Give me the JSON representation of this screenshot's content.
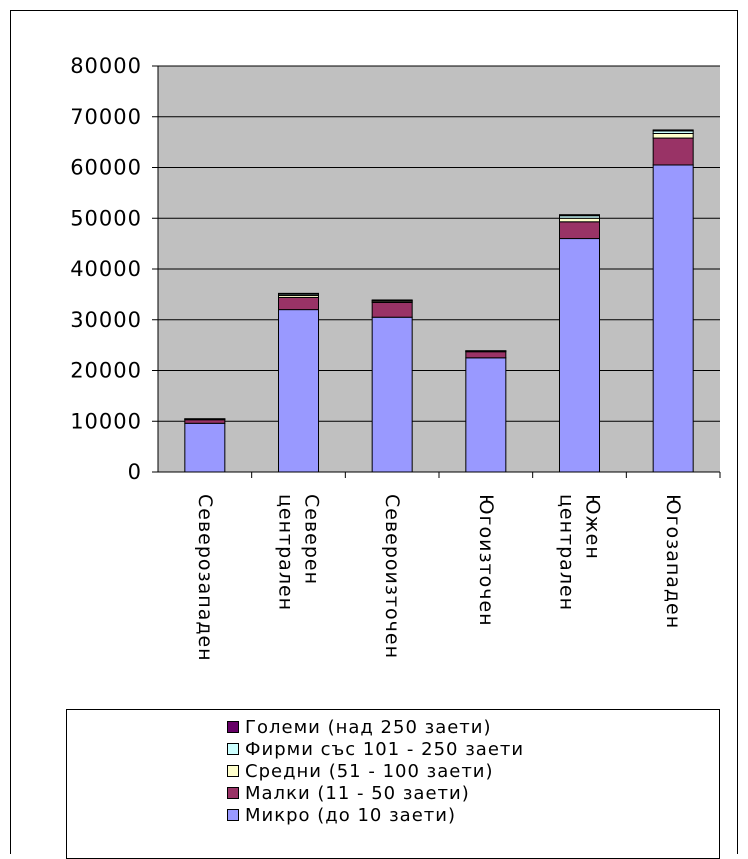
{
  "chart_data": {
    "type": "bar",
    "stacked": true,
    "categories": [
      [
        "Северозападен"
      ],
      [
        "Северен",
        "централен"
      ],
      [
        "Североизточен"
      ],
      [
        "Югоизточен"
      ],
      [
        "Южен",
        "централен"
      ],
      [
        "Югозападен"
      ]
    ],
    "series": [
      {
        "name": "Микро (до 10 заети)",
        "color": "#9999ff",
        "values": [
          9600,
          32000,
          30500,
          22500,
          46000,
          60500
        ]
      },
      {
        "name": "Малки (11 -  50 заети)",
        "color": "#993366",
        "values": [
          700,
          2400,
          2900,
          1200,
          3300,
          5300
        ]
      },
      {
        "name": "Средни (51 -  100 заети)",
        "color": "#ffffcc",
        "values": [
          100,
          400,
          250,
          100,
          700,
          900
        ]
      },
      {
        "name": "Фирми със 101 - 250 заети",
        "color": "#ccffff",
        "values": [
          50,
          250,
          150,
          50,
          500,
          500
        ]
      },
      {
        "name": "Големи (над 250 заети)",
        "color": "#660066",
        "values": [
          50,
          150,
          100,
          50,
          200,
          200
        ]
      }
    ],
    "y_ticks": [
      "0",
      "10000",
      "20000",
      "30000",
      "40000",
      "50000",
      "60000",
      "70000",
      "80000"
    ],
    "ylim": [
      0,
      80000
    ],
    "grid": true,
    "plot_background": "#c0c0c0",
    "legend_position": "bottom"
  }
}
